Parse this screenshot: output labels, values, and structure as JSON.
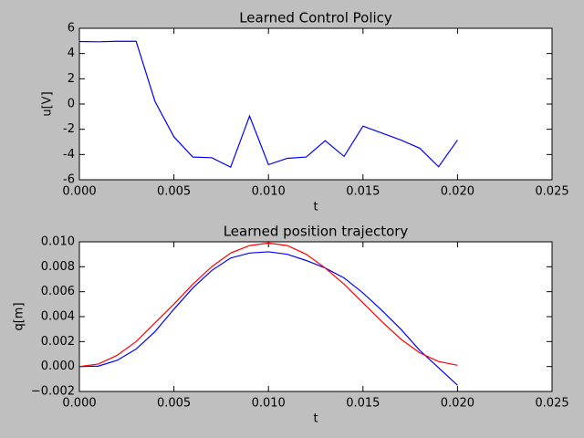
{
  "chart_data": [
    {
      "type": "line",
      "title": "Learned Control Policy",
      "x_label": "t",
      "y_label": "u[V]",
      "x": [
        0,
        0.001,
        0.002,
        0.003,
        0.004,
        0.005,
        0.006,
        0.007,
        0.008,
        0.009,
        0.01,
        0.011,
        0.012,
        0.013,
        0.014,
        0.015,
        0.016,
        0.017,
        0.018,
        0.019,
        0.02
      ],
      "series": [
        {
          "color": "#0000ff",
          "values": [
            4.95,
            4.93,
            4.97,
            4.97,
            0.2,
            -2.6,
            -4.2,
            -4.25,
            -5.0,
            -0.95,
            -4.8,
            -4.3,
            -4.2,
            -2.9,
            -4.15,
            -1.75,
            -2.3,
            -2.85,
            -3.5,
            -4.97,
            -2.85
          ]
        }
      ],
      "xlim": [
        0,
        0.025
      ],
      "xticks": [
        {
          "value": 0,
          "label": "0.000"
        },
        0.005,
        {
          "value": 0.01,
          "label": "0.010"
        },
        0.015,
        {
          "value": 0.02,
          "label": "0.020"
        },
        0.025
      ],
      "ylim": [
        -6,
        6
      ],
      "yticks": [
        -6,
        -4,
        -2,
        0,
        2,
        4,
        6
      ]
    },
    {
      "type": "line",
      "title": "Learned position trajectory",
      "x_label": "t",
      "y_label": "q[m]",
      "x": [
        0,
        0.001,
        0.002,
        0.003,
        0.004,
        0.005,
        0.006,
        0.007,
        0.008,
        0.009,
        0.01,
        0.011,
        0.012,
        0.013,
        0.014,
        0.015,
        0.016,
        0.017,
        0.018,
        0.019,
        0.02
      ],
      "series": [
        {
          "color": "#0000ff",
          "values": [
            0,
            3e-05,
            0.0005,
            0.0014,
            0.0028,
            0.0046,
            0.0063,
            0.0077,
            0.0087,
            0.0091,
            0.0092,
            0.009,
            0.0085,
            0.0079,
            0.0071,
            0.0059,
            0.0045,
            0.003,
            0.0013,
            -0.0001,
            -0.0015
          ]
        },
        {
          "color": "#ff0000",
          "values": [
            0,
            0.0002,
            0.0009,
            0.002,
            0.0035,
            0.005,
            0.0066,
            0.008,
            0.0091,
            0.0097,
            0.0099,
            0.0097,
            0.009,
            0.0079,
            0.0066,
            0.0051,
            0.0036,
            0.0022,
            0.0011,
            0.0004,
            0.0001
          ]
        }
      ],
      "xlim": [
        0,
        0.025
      ],
      "xticks": [
        {
          "value": 0,
          "label": "0.000"
        },
        0.005,
        {
          "value": 0.01,
          "label": "0.010"
        },
        0.015,
        {
          "value": 0.02,
          "label": "0.020"
        },
        0.025
      ],
      "ylim": [
        -0.002,
        0.01
      ],
      "yticks": [
        {
          "value": -0.002,
          "label": "−0.002"
        },
        {
          "value": 0,
          "label": "0.000"
        },
        0.002,
        0.004,
        0.006,
        0.008,
        {
          "value": 0.01,
          "label": "0.010"
        }
      ]
    }
  ]
}
